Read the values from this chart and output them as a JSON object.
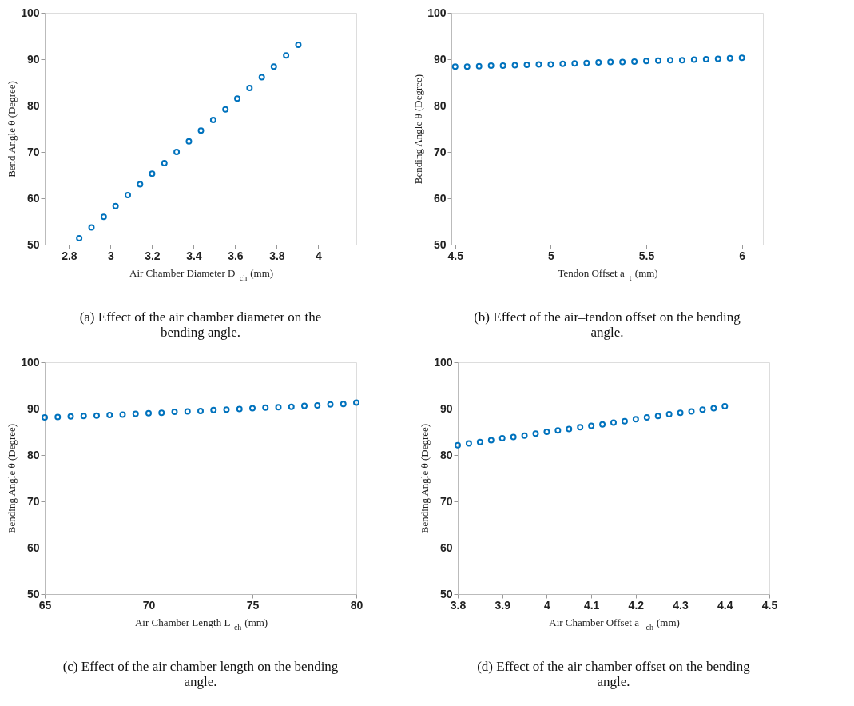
{
  "chart_data": [
    {
      "type": "scatter",
      "xlabel": "Air Chamber Diameter D$_{ch}$ (mm)",
      "ylabel": "Bend Angle θ (Degree)",
      "marker": "circle",
      "grid": false,
      "x": [
        2.849,
        2.908,
        2.967,
        3.024,
        3.083,
        3.142,
        3.2,
        3.259,
        3.318,
        3.377,
        3.435,
        3.494,
        3.553,
        3.61,
        3.669,
        3.728,
        3.786,
        3.845,
        3.904
      ],
      "series": [
        {
          "color": "#0072bd",
          "values": [
            51.4,
            53.7,
            56.0,
            58.3,
            60.7,
            63.0,
            65.3,
            67.6,
            70.0,
            72.3,
            74.6,
            76.9,
            79.2,
            81.5,
            83.8,
            86.1,
            88.4,
            90.8,
            93.1
          ]
        }
      ],
      "xlim": [
        2.683,
        4.183
      ],
      "xticks": [
        2.8,
        3,
        3.2,
        3.4,
        3.6,
        3.8,
        4
      ],
      "ylim": [
        50,
        100
      ],
      "yticks": [
        50,
        60,
        70,
        80,
        90,
        100
      ],
      "annotations": [
        "(a) Effect of the air chamber diameter on the bending angle."
      ]
    },
    {
      "type": "scatter",
      "xlabel": "Tendon Offset a$_{t}$ (mm)",
      "ylabel": "Bending Angle θ (Degree)",
      "marker": "circle",
      "grid": false,
      "x": [
        4.5,
        4.5625,
        4.625,
        4.6875,
        4.75,
        4.8125,
        4.875,
        4.9375,
        5.0,
        5.0625,
        5.125,
        5.1875,
        5.25,
        5.3125,
        5.375,
        5.4375,
        5.5,
        5.5625,
        5.625,
        5.6875,
        5.75,
        5.8125,
        5.875,
        5.9375,
        6.0
      ],
      "series": [
        {
          "color": "#0072bd",
          "values": [
            88.4,
            88.4,
            88.5,
            88.6,
            88.6,
            88.7,
            88.8,
            88.9,
            88.9,
            89.0,
            89.1,
            89.2,
            89.3,
            89.4,
            89.4,
            89.5,
            89.6,
            89.7,
            89.8,
            89.8,
            89.9,
            90.0,
            90.1,
            90.2,
            90.3
          ]
        }
      ],
      "xlim": [
        4.48,
        6.11
      ],
      "xticks": [
        4.5,
        5,
        5.5,
        6
      ],
      "ylim": [
        50,
        100
      ],
      "yticks": [
        50,
        60,
        70,
        80,
        90,
        100
      ],
      "annotations": [
        "(b) Effect of the air–tendon offset on the bending angle."
      ]
    },
    {
      "type": "scatter",
      "xlabel": "Air Chamber Length L$_{ch}$ (mm)",
      "ylabel": "Bending Angle θ (Degree)",
      "marker": "circle",
      "grid": false,
      "x": [
        65,
        65.625,
        66.25,
        66.875,
        67.5,
        68.125,
        68.75,
        69.375,
        70,
        70.625,
        71.25,
        71.875,
        72.5,
        73.125,
        73.75,
        74.375,
        75,
        75.625,
        76.25,
        76.875,
        77.5,
        78.125,
        78.75,
        79.375,
        80
      ],
      "series": [
        {
          "color": "#0072bd",
          "values": [
            88.1,
            88.2,
            88.3,
            88.4,
            88.5,
            88.6,
            88.7,
            88.9,
            89.0,
            89.1,
            89.3,
            89.4,
            89.5,
            89.7,
            89.8,
            89.9,
            90.1,
            90.2,
            90.3,
            90.4,
            90.6,
            90.7,
            90.9,
            91.0,
            91.3
          ]
        }
      ],
      "xlim": [
        65,
        80
      ],
      "xticks": [
        65,
        70,
        75,
        80
      ],
      "ylim": [
        50,
        100
      ],
      "yticks": [
        50,
        60,
        70,
        80,
        90,
        100
      ],
      "annotations": [
        "(c) Effect of the air chamber length on the bending angle."
      ]
    },
    {
      "type": "scatter",
      "xlabel": "Air Chamber Offset a$_{ch}$ (mm)",
      "ylabel": "Bending Angle θ (Degree)",
      "marker": "circle",
      "grid": false,
      "x": [
        3.8,
        3.825,
        3.85,
        3.875,
        3.9,
        3.925,
        3.95,
        3.975,
        4.0,
        4.025,
        4.05,
        4.075,
        4.1,
        4.125,
        4.15,
        4.175,
        4.2,
        4.225,
        4.25,
        4.275,
        4.3,
        4.325,
        4.35,
        4.375,
        4.4
      ],
      "series": [
        {
          "color": "#0072bd",
          "values": [
            82.1,
            82.5,
            82.8,
            83.2,
            83.6,
            83.9,
            84.2,
            84.6,
            85.0,
            85.3,
            85.6,
            86.0,
            86.3,
            86.6,
            87.0,
            87.3,
            87.7,
            88.1,
            88.4,
            88.8,
            89.1,
            89.4,
            89.8,
            90.1,
            90.5
          ]
        }
      ],
      "xlim": [
        3.8,
        4.5
      ],
      "xticks": [
        3.8,
        3.9,
        4,
        4.1,
        4.2,
        4.3,
        4.4,
        4.5
      ],
      "ylim": [
        50,
        100
      ],
      "yticks": [
        50,
        60,
        70,
        80,
        90,
        100
      ],
      "annotations": [
        "(d) Effect of the air chamber offset on the bending angle."
      ]
    }
  ]
}
